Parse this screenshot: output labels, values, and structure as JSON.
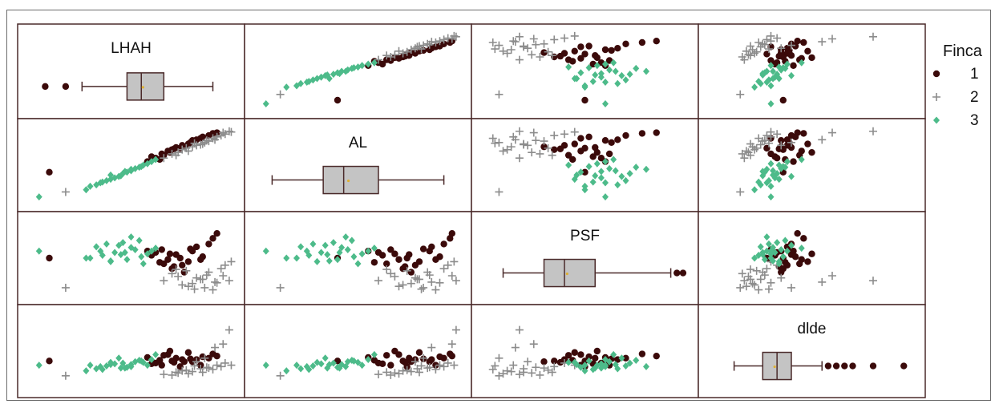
{
  "chart_data": {
    "type": "scatter",
    "subtype": "scatterplot-matrix",
    "variables": [
      "LHAH",
      "AL",
      "PSF",
      "dlde"
    ],
    "diagonal": "boxplot",
    "grid": false,
    "legend": {
      "title": "Finca",
      "placement": "right",
      "entries": [
        {
          "label": "1",
          "marker": "circle",
          "color": "#3b0a0a"
        },
        {
          "label": "2",
          "marker": "plus",
          "color": "#8c8c8c"
        },
        {
          "label": "3",
          "marker": "diamond",
          "color": "#4dbb8a"
        }
      ]
    },
    "ranges": {
      "LHAH": [
        0,
        100
      ],
      "AL": [
        0,
        100
      ],
      "PSF": [
        0,
        100
      ],
      "dlde": [
        0,
        100
      ]
    },
    "boxplots": {
      "LHAH": {
        "whisker_low": 26,
        "q1": 48,
        "median": 55,
        "q3": 66,
        "whisker_high": 90,
        "outliers": [
          8,
          18
        ]
      },
      "AL": {
        "whisker_low": 8,
        "q1": 33,
        "median": 43,
        "q3": 60,
        "whisker_high": 92,
        "outliers": []
      },
      "PSF": {
        "whisker_low": 10,
        "q1": 30,
        "median": 40,
        "q3": 55,
        "whisker_high": 92,
        "outliers": [
          95,
          98
        ]
      },
      "dlde": {
        "whisker_low": 12,
        "q1": 26,
        "median": 33,
        "q3": 40,
        "whisker_high": 55,
        "outliers": [
          58,
          62,
          66,
          70,
          80,
          95
        ]
      }
    },
    "series": [
      {
        "name": "1",
        "points": [
          {
            "LHAH": 72,
            "AL": 75,
            "PSF": 55,
            "dlde": 40
          },
          {
            "LHAH": 80,
            "AL": 85,
            "PSF": 60,
            "dlde": 35
          },
          {
            "LHAH": 68,
            "AL": 70,
            "PSF": 48,
            "dlde": 45
          },
          {
            "LHAH": 75,
            "AL": 78,
            "PSF": 40,
            "dlde": 38
          },
          {
            "LHAH": 65,
            "AL": 66,
            "PSF": 62,
            "dlde": 30
          },
          {
            "LHAH": 85,
            "AL": 90,
            "PSF": 52,
            "dlde": 42
          },
          {
            "LHAH": 70,
            "AL": 72,
            "PSF": 35,
            "dlde": 36
          },
          {
            "LHAH": 78,
            "AL": 80,
            "PSF": 45,
            "dlde": 48
          },
          {
            "LHAH": 62,
            "AL": 60,
            "PSF": 58,
            "dlde": 33
          },
          {
            "LHAH": 88,
            "AL": 92,
            "PSF": 70,
            "dlde": 40
          },
          {
            "LHAH": 74,
            "AL": 74,
            "PSF": 50,
            "dlde": 28
          },
          {
            "LHAH": 66,
            "AL": 64,
            "PSF": 42,
            "dlde": 44
          },
          {
            "LHAH": 82,
            "AL": 86,
            "PSF": 66,
            "dlde": 38
          },
          {
            "LHAH": 60,
            "AL": 62,
            "PSF": 54,
            "dlde": 32
          },
          {
            "LHAH": 90,
            "AL": 95,
            "PSF": 78,
            "dlde": 46
          },
          {
            "LHAH": 76,
            "AL": 76,
            "PSF": 30,
            "dlde": 35
          },
          {
            "LHAH": 69,
            "AL": 68,
            "PSF": 56,
            "dlde": 50
          },
          {
            "LHAH": 84,
            "AL": 88,
            "PSF": 48,
            "dlde": 30
          },
          {
            "LHAH": 64,
            "AL": 58,
            "PSF": 44,
            "dlde": 37
          },
          {
            "LHAH": 58,
            "AL": 55,
            "PSF": 60,
            "dlde": 41
          },
          {
            "LHAH": 92,
            "AL": 96,
            "PSF": 85,
            "dlde": 43
          },
          {
            "LHAH": 71,
            "AL": 73,
            "PSF": 38,
            "dlde": 34
          },
          {
            "LHAH": 79,
            "AL": 82,
            "PSF": 63,
            "dlde": 39
          },
          {
            "LHAH": 10,
            "AL": 40,
            "PSF": 50,
            "dlde": 36
          }
        ]
      },
      {
        "name": "2",
        "points": [
          {
            "LHAH": 85,
            "AL": 80,
            "PSF": 20,
            "dlde": 20
          },
          {
            "LHAH": 92,
            "AL": 90,
            "PSF": 15,
            "dlde": 30
          },
          {
            "LHAH": 95,
            "AL": 96,
            "PSF": 25,
            "dlde": 60
          },
          {
            "LHAH": 78,
            "AL": 70,
            "PSF": 10,
            "dlde": 18
          },
          {
            "LHAH": 88,
            "AL": 84,
            "PSF": 30,
            "dlde": 26
          },
          {
            "LHAH": 98,
            "AL": 98,
            "PSF": 18,
            "dlde": 80
          },
          {
            "LHAH": 75,
            "AL": 72,
            "PSF": 12,
            "dlde": 22
          },
          {
            "LHAH": 82,
            "AL": 78,
            "PSF": 22,
            "dlde": 35
          },
          {
            "LHAH": 90,
            "AL": 88,
            "PSF": 5,
            "dlde": 24
          },
          {
            "LHAH": 70,
            "AL": 66,
            "PSF": 28,
            "dlde": 16
          },
          {
            "LHAH": 86,
            "AL": 82,
            "PSF": 8,
            "dlde": 40
          },
          {
            "LHAH": 94,
            "AL": 92,
            "PSF": 35,
            "dlde": 28
          },
          {
            "LHAH": 80,
            "AL": 76,
            "PSF": 14,
            "dlde": 21
          },
          {
            "LHAH": 73,
            "AL": 68,
            "PSF": 24,
            "dlde": 19
          },
          {
            "LHAH": 96,
            "AL": 94,
            "PSF": 40,
            "dlde": 33
          },
          {
            "LHAH": 87,
            "AL": 85,
            "PSF": 26,
            "dlde": 27
          },
          {
            "LHAH": 18,
            "AL": 12,
            "PSF": 8,
            "dlde": 15
          },
          {
            "LHAH": 77,
            "AL": 74,
            "PSF": 32,
            "dlde": 23
          },
          {
            "LHAH": 91,
            "AL": 86,
            "PSF": 16,
            "dlde": 55
          },
          {
            "LHAH": 84,
            "AL": 79,
            "PSF": 20,
            "dlde": 25
          },
          {
            "LHAH": 66,
            "AL": 60,
            "PSF": 18,
            "dlde": 17
          },
          {
            "LHAH": 99,
            "AL": 97,
            "PSF": 45,
            "dlde": 30
          },
          {
            "LHAH": 81,
            "AL": 81,
            "PSF": 6,
            "dlde": 29
          },
          {
            "LHAH": 72,
            "AL": 64,
            "PSF": 34,
            "dlde": 20
          }
        ]
      },
      {
        "name": "3",
        "points": [
          {
            "LHAH": 30,
            "AL": 20,
            "PSF": 50,
            "dlde": 30
          },
          {
            "LHAH": 35,
            "AL": 25,
            "PSF": 60,
            "dlde": 28
          },
          {
            "LHAH": 40,
            "AL": 30,
            "PSF": 45,
            "dlde": 34
          },
          {
            "LHAH": 45,
            "AL": 35,
            "PSF": 55,
            "dlde": 26
          },
          {
            "LHAH": 50,
            "AL": 42,
            "PSF": 65,
            "dlde": 31
          },
          {
            "LHAH": 55,
            "AL": 48,
            "PSF": 52,
            "dlde": 36
          },
          {
            "LHAH": 38,
            "AL": 28,
            "PSF": 70,
            "dlde": 29
          },
          {
            "LHAH": 42,
            "AL": 32,
            "PSF": 58,
            "dlde": 32
          },
          {
            "LHAH": 48,
            "AL": 40,
            "PSF": 48,
            "dlde": 27
          },
          {
            "LHAH": 52,
            "AL": 45,
            "PSF": 62,
            "dlde": 35
          },
          {
            "LHAH": 58,
            "AL": 52,
            "PSF": 56,
            "dlde": 30
          },
          {
            "LHAH": 33,
            "AL": 22,
            "PSF": 66,
            "dlde": 25
          },
          {
            "LHAH": 46,
            "AL": 38,
            "PSF": 72,
            "dlde": 33
          },
          {
            "LHAH": 60,
            "AL": 55,
            "PSF": 60,
            "dlde": 38
          },
          {
            "LHAH": 36,
            "AL": 26,
            "PSF": 54,
            "dlde": 24
          },
          {
            "LHAH": 44,
            "AL": 34,
            "PSF": 68,
            "dlde": 40
          },
          {
            "LHAH": 62,
            "AL": 58,
            "PSF": 64,
            "dlde": 45
          },
          {
            "LHAH": 28,
            "AL": 15,
            "PSF": 50,
            "dlde": 22
          },
          {
            "LHAH": 54,
            "AL": 47,
            "PSF": 75,
            "dlde": 37
          },
          {
            "LHAH": 40,
            "AL": 36,
            "PSF": 46,
            "dlde": 31
          },
          {
            "LHAH": 50,
            "AL": 44,
            "PSF": 80,
            "dlde": 28
          },
          {
            "LHAH": 5,
            "AL": 5,
            "PSF": 60,
            "dlde": 30
          },
          {
            "LHAH": 56,
            "AL": 50,
            "PSF": 42,
            "dlde": 34
          },
          {
            "LHAH": 47,
            "AL": 41,
            "PSF": 58,
            "dlde": 26
          }
        ]
      }
    ]
  }
}
